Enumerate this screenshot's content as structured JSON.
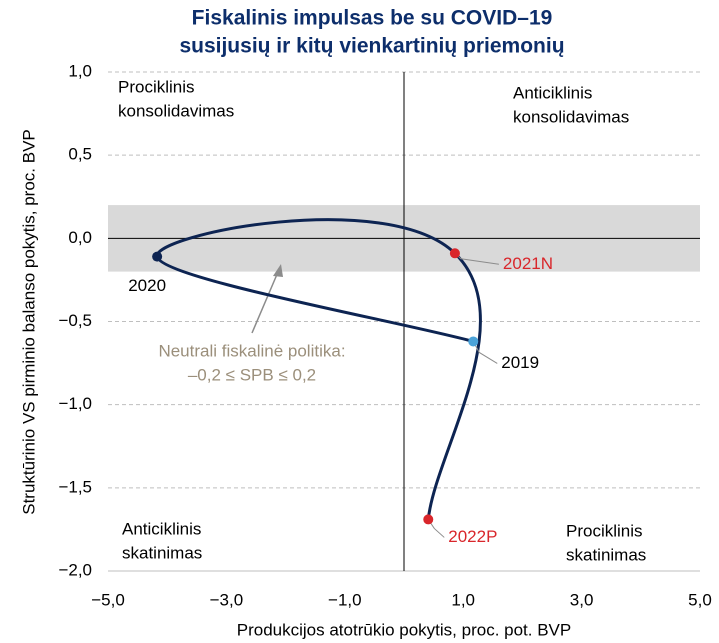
{
  "chart_data": {
    "type": "line",
    "title": [
      "Fiskalinis impulsas be su COVID–19",
      "susijusių ir kitų vienkartinių priemonių"
    ],
    "x_label": "Produkcijos atotrūkio pokytis, proc. pot. BVP",
    "y_label": "Struktūrinio VS pirminio balanso pokytis, proc. BVP",
    "x": [
      1.17,
      -4.17,
      0.86,
      0.41
    ],
    "series": [
      {
        "color": "#0d2452",
        "values": [
          -0.62,
          -0.11,
          -0.09,
          -1.69
        ],
        "point_labels": [
          "2019",
          "2020",
          "2021N",
          "2022P"
        ],
        "point_colors": [
          "#4ba3d9",
          "#0d2452",
          "#d9262b",
          "#d9262b"
        ],
        "label_colors": [
          "#000000",
          "#000000",
          "#d9262b",
          "#d9262b"
        ]
      }
    ],
    "xlim": [
      -5,
      5
    ],
    "ylim": [
      -2,
      1
    ],
    "xticks": [
      {
        "value": -5,
        "label": "−5,0"
      },
      {
        "value": -3,
        "label": "−3,0"
      },
      {
        "value": -1,
        "label": "−1,0"
      },
      {
        "value": 1,
        "label": "1,0"
      },
      {
        "value": 3,
        "label": "3,0"
      },
      {
        "value": 5,
        "label": "5,0"
      }
    ],
    "yticks": [
      {
        "value": -2,
        "label": "−2,0"
      },
      {
        "value": -1.5,
        "label": "−1,5"
      },
      {
        "value": -1,
        "label": "−1,0"
      },
      {
        "value": -0.5,
        "label": "−0,5"
      },
      {
        "value": 0,
        "label": "0,0"
      },
      {
        "value": 0.5,
        "label": "0,5"
      },
      {
        "value": 1,
        "label": "1,0"
      }
    ],
    "grid": true,
    "neutral_band": [
      -0.2,
      0.2
    ],
    "annotation": [
      "Neutrali fiskalinė politika:",
      "–0,2 ≤ SPB ≤ 0,2"
    ],
    "quadrant_labels": [
      [
        "Prociklinis",
        "konsolidavimas"
      ],
      [
        "Anticiklinis",
        "konsolidavimas"
      ],
      [
        "Anticiklinis",
        "skatinimas"
      ],
      [
        "Prociklinis",
        "skatinimas"
      ]
    ]
  }
}
